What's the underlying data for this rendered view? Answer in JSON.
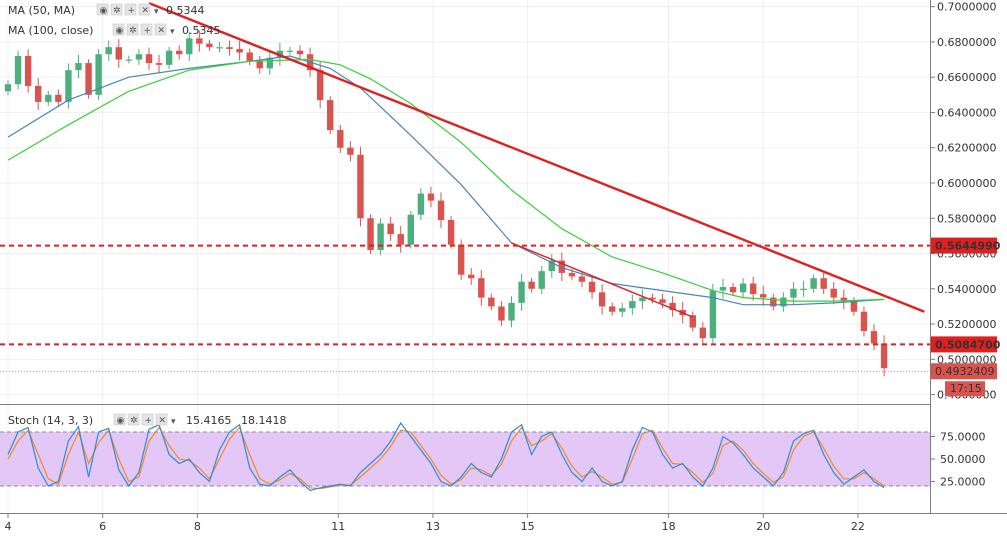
{
  "chart_data": {
    "type": "candlestick",
    "x_tick_labels": [
      "4",
      "6",
      "8",
      "11",
      "13",
      "15",
      "18",
      "20",
      "22"
    ],
    "y_tick_labels": [
      "0.7000000",
      "0.6800000",
      "0.6600000",
      "0.6400000",
      "0.6200000",
      "0.6000000",
      "0.5800000",
      "0.5600000",
      "0.5400000",
      "0.5200000",
      "0.5000000",
      "0.4800000"
    ],
    "ylim": [
      0.4775,
      0.7015
    ],
    "levels": [
      {
        "value": 0.564499,
        "label": "0.5644990"
      },
      {
        "value": 0.50847,
        "label": "0.5084700"
      }
    ],
    "last_price": {
      "value": 0.4932409,
      "label": "0.4932409"
    },
    "countdown": "17:15",
    "price_path": [
      [
        0,
        0.656
      ],
      [
        1,
        0.672
      ],
      [
        2,
        0.655
      ],
      [
        3,
        0.646
      ],
      [
        4,
        0.65
      ],
      [
        5,
        0.646
      ],
      [
        6,
        0.664
      ],
      [
        7,
        0.668
      ],
      [
        8,
        0.65
      ],
      [
        9,
        0.673
      ],
      [
        10,
        0.677
      ],
      [
        11,
        0.67
      ],
      [
        12,
        0.67
      ],
      [
        13,
        0.673
      ],
      [
        14,
        0.668
      ],
      [
        15,
        0.667
      ],
      [
        16,
        0.675
      ],
      [
        17,
        0.673
      ],
      [
        18,
        0.682
      ],
      [
        19,
        0.679
      ],
      [
        20,
        0.677
      ],
      [
        21,
        0.677
      ],
      [
        22,
        0.676
      ],
      [
        23,
        0.674
      ],
      [
        24,
        0.669
      ],
      [
        25,
        0.665
      ],
      [
        26,
        0.671
      ],
      [
        27,
        0.675
      ],
      [
        28,
        0.675
      ],
      [
        29,
        0.673
      ],
      [
        30,
        0.664
      ],
      [
        31,
        0.647
      ],
      [
        32,
        0.63
      ],
      [
        33,
        0.62
      ],
      [
        34,
        0.616
      ],
      [
        35,
        0.58
      ],
      [
        36,
        0.562
      ],
      [
        37,
        0.577
      ],
      [
        38,
        0.571
      ],
      [
        39,
        0.565
      ],
      [
        40,
        0.582
      ],
      [
        41,
        0.594
      ],
      [
        42,
        0.59
      ],
      [
        43,
        0.579
      ],
      [
        44,
        0.565
      ],
      [
        45,
        0.548
      ],
      [
        46,
        0.546
      ],
      [
        47,
        0.535
      ],
      [
        48,
        0.53
      ],
      [
        49,
        0.522
      ],
      [
        50,
        0.532
      ],
      [
        51,
        0.544
      ],
      [
        52,
        0.54
      ],
      [
        53,
        0.55
      ],
      [
        54,
        0.556
      ],
      [
        55,
        0.549
      ],
      [
        56,
        0.547
      ],
      [
        57,
        0.544
      ],
      [
        58,
        0.538
      ],
      [
        59,
        0.53
      ],
      [
        60,
        0.527
      ],
      [
        61,
        0.529
      ],
      [
        62,
        0.533
      ],
      [
        63,
        0.535
      ],
      [
        64,
        0.534
      ],
      [
        65,
        0.532
      ],
      [
        66,
        0.528
      ],
      [
        67,
        0.525
      ],
      [
        68,
        0.518
      ],
      [
        69,
        0.512
      ],
      [
        70,
        0.539
      ],
      [
        71,
        0.541
      ],
      [
        72,
        0.538
      ],
      [
        73,
        0.543
      ],
      [
        74,
        0.537
      ],
      [
        75,
        0.535
      ],
      [
        76,
        0.53
      ],
      [
        77,
        0.535
      ],
      [
        78,
        0.54
      ],
      [
        79,
        0.54
      ],
      [
        80,
        0.546
      ],
      [
        81,
        0.54
      ],
      [
        82,
        0.535
      ],
      [
        83,
        0.533
      ],
      [
        84,
        0.527
      ],
      [
        85,
        0.516
      ],
      [
        86,
        0.509
      ],
      [
        87,
        0.495
      ]
    ],
    "ma_50_path": [
      [
        0,
        0.613
      ],
      [
        6,
        0.633
      ],
      [
        12,
        0.652
      ],
      [
        18,
        0.664
      ],
      [
        24,
        0.669
      ],
      [
        30,
        0.67
      ],
      [
        33,
        0.667
      ],
      [
        36,
        0.659
      ],
      [
        40,
        0.645
      ],
      [
        45,
        0.623
      ],
      [
        50,
        0.596
      ],
      [
        55,
        0.574
      ],
      [
        60,
        0.558
      ],
      [
        65,
        0.549
      ],
      [
        70,
        0.539
      ],
      [
        73,
        0.535
      ],
      [
        78,
        0.533
      ],
      [
        82,
        0.533
      ],
      [
        87,
        0.534
      ]
    ],
    "ma_100_path": [
      [
        0,
        0.626
      ],
      [
        6,
        0.647
      ],
      [
        12,
        0.66
      ],
      [
        18,
        0.665
      ],
      [
        24,
        0.669
      ],
      [
        28,
        0.672
      ],
      [
        32,
        0.665
      ],
      [
        35,
        0.654
      ],
      [
        40,
        0.627
      ],
      [
        45,
        0.599
      ],
      [
        50,
        0.566
      ],
      [
        55,
        0.552
      ],
      [
        60,
        0.543
      ],
      [
        65,
        0.539
      ],
      [
        70,
        0.535
      ],
      [
        73,
        0.531
      ],
      [
        78,
        0.531
      ],
      [
        82,
        0.532
      ],
      [
        87,
        0.534
      ]
    ],
    "trendlines": [
      {
        "from": [
          14,
          0.702
        ],
        "to": [
          91,
          0.527
        ],
        "color": "#e02020",
        "width": 2.4
      },
      {
        "from": [
          50,
          0.566
        ],
        "to": [
          68,
          0.524
        ],
        "color": "#e02020",
        "width": 1.4
      }
    ],
    "stoch": {
      "name_label": "Stoch (14, 3, 3)",
      "k_value": "15.4165",
      "d_value": "18.1418",
      "y_tick_labels": [
        "75.0000",
        "50.0000",
        "25.0000"
      ],
      "band": [
        20,
        80
      ],
      "ylim": [
        0,
        100
      ],
      "k_path": [
        [
          0,
          55
        ],
        [
          1,
          80
        ],
        [
          2,
          85
        ],
        [
          3,
          40
        ],
        [
          4,
          20
        ],
        [
          5,
          25
        ],
        [
          6,
          70
        ],
        [
          7,
          86
        ],
        [
          8,
          30
        ],
        [
          9,
          80
        ],
        [
          10,
          84
        ],
        [
          11,
          38
        ],
        [
          12,
          20
        ],
        [
          13,
          35
        ],
        [
          14,
          83
        ],
        [
          15,
          88
        ],
        [
          16,
          55
        ],
        [
          17,
          45
        ],
        [
          18,
          50
        ],
        [
          19,
          35
        ],
        [
          20,
          25
        ],
        [
          21,
          60
        ],
        [
          22,
          80
        ],
        [
          23,
          88
        ],
        [
          24,
          40
        ],
        [
          25,
          22
        ],
        [
          26,
          20
        ],
        [
          27,
          30
        ],
        [
          28,
          38
        ],
        [
          29,
          25
        ],
        [
          30,
          15
        ],
        [
          31,
          18
        ],
        [
          32,
          20
        ],
        [
          33,
          22
        ],
        [
          34,
          20
        ],
        [
          35,
          35
        ],
        [
          36,
          45
        ],
        [
          37,
          55
        ],
        [
          38,
          70
        ],
        [
          39,
          90
        ],
        [
          40,
          75
        ],
        [
          41,
          60
        ],
        [
          42,
          45
        ],
        [
          43,
          25
        ],
        [
          44,
          20
        ],
        [
          45,
          30
        ],
        [
          46,
          45
        ],
        [
          47,
          35
        ],
        [
          48,
          30
        ],
        [
          49,
          50
        ],
        [
          50,
          80
        ],
        [
          51,
          88
        ],
        [
          52,
          55
        ],
        [
          53,
          75
        ],
        [
          54,
          80
        ],
        [
          55,
          55
        ],
        [
          56,
          35
        ],
        [
          57,
          25
        ],
        [
          58,
          40
        ],
        [
          59,
          25
        ],
        [
          60,
          20
        ],
        [
          61,
          25
        ],
        [
          62,
          60
        ],
        [
          63,
          85
        ],
        [
          64,
          80
        ],
        [
          65,
          55
        ],
        [
          66,
          40
        ],
        [
          67,
          45
        ],
        [
          68,
          30
        ],
        [
          69,
          20
        ],
        [
          70,
          40
        ],
        [
          71,
          75
        ],
        [
          72,
          68
        ],
        [
          73,
          55
        ],
        [
          74,
          40
        ],
        [
          75,
          30
        ],
        [
          76,
          20
        ],
        [
          77,
          35
        ],
        [
          78,
          70
        ],
        [
          79,
          78
        ],
        [
          80,
          82
        ],
        [
          81,
          55
        ],
        [
          82,
          35
        ],
        [
          83,
          22
        ],
        [
          84,
          30
        ],
        [
          85,
          38
        ],
        [
          86,
          25
        ],
        [
          87,
          18
        ]
      ],
      "d_path": [
        [
          0,
          50
        ],
        [
          1,
          70
        ],
        [
          2,
          82
        ],
        [
          3,
          55
        ],
        [
          4,
          28
        ],
        [
          5,
          22
        ],
        [
          6,
          55
        ],
        [
          7,
          80
        ],
        [
          8,
          45
        ],
        [
          9,
          68
        ],
        [
          10,
          82
        ],
        [
          11,
          50
        ],
        [
          12,
          25
        ],
        [
          13,
          30
        ],
        [
          14,
          70
        ],
        [
          15,
          85
        ],
        [
          16,
          65
        ],
        [
          17,
          50
        ],
        [
          18,
          48
        ],
        [
          19,
          40
        ],
        [
          20,
          28
        ],
        [
          21,
          50
        ],
        [
          22,
          72
        ],
        [
          23,
          85
        ],
        [
          24,
          55
        ],
        [
          25,
          28
        ],
        [
          26,
          22
        ],
        [
          27,
          27
        ],
        [
          28,
          34
        ],
        [
          29,
          28
        ],
        [
          30,
          18
        ],
        [
          31,
          17
        ],
        [
          32,
          19
        ],
        [
          33,
          21
        ],
        [
          34,
          21
        ],
        [
          35,
          30
        ],
        [
          36,
          40
        ],
        [
          37,
          50
        ],
        [
          38,
          64
        ],
        [
          39,
          82
        ],
        [
          40,
          80
        ],
        [
          41,
          65
        ],
        [
          42,
          50
        ],
        [
          43,
          32
        ],
        [
          44,
          22
        ],
        [
          45,
          27
        ],
        [
          46,
          40
        ],
        [
          47,
          38
        ],
        [
          48,
          32
        ],
        [
          49,
          44
        ],
        [
          50,
          70
        ],
        [
          51,
          85
        ],
        [
          52,
          65
        ],
        [
          53,
          70
        ],
        [
          54,
          78
        ],
        [
          55,
          62
        ],
        [
          56,
          42
        ],
        [
          57,
          30
        ],
        [
          58,
          36
        ],
        [
          59,
          30
        ],
        [
          60,
          22
        ],
        [
          61,
          24
        ],
        [
          62,
          50
        ],
        [
          63,
          78
        ],
        [
          64,
          82
        ],
        [
          65,
          62
        ],
        [
          66,
          45
        ],
        [
          67,
          44
        ],
        [
          68,
          35
        ],
        [
          69,
          24
        ],
        [
          70,
          34
        ],
        [
          71,
          65
        ],
        [
          72,
          70
        ],
        [
          73,
          60
        ],
        [
          74,
          45
        ],
        [
          75,
          34
        ],
        [
          76,
          24
        ],
        [
          77,
          30
        ],
        [
          78,
          60
        ],
        [
          79,
          75
        ],
        [
          80,
          80
        ],
        [
          81,
          62
        ],
        [
          82,
          42
        ],
        [
          83,
          28
        ],
        [
          84,
          28
        ],
        [
          85,
          35
        ],
        [
          86,
          28
        ],
        [
          87,
          20
        ]
      ]
    }
  },
  "legend": {
    "ma50_label": "MA (50, MA)",
    "ma50_value": "0.5344",
    "ma100_label": "MA (100, close)",
    "ma100_value": "0.5345"
  },
  "colors": {
    "up": "#4caf7d",
    "down": "#d9534f",
    "ma_50": "#36d136",
    "ma_100": "#4a86b4",
    "level": "#e02020",
    "stoch_k": "#2f8bd8",
    "stoch_d": "#f08a24",
    "stoch_band": "#e3c8f7"
  }
}
